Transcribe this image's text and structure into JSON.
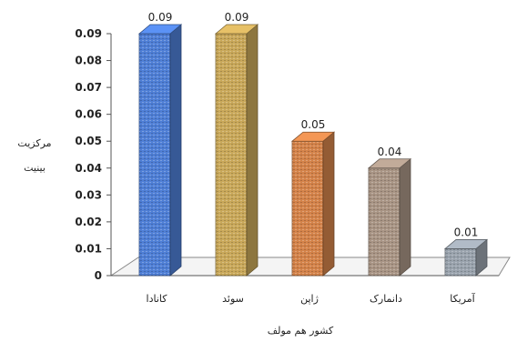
{
  "chart_data": {
    "type": "bar",
    "categories": [
      "کانادا",
      "سوئد",
      "ژاپن",
      "دانمارک",
      "آمریکا"
    ],
    "values": [
      0.09,
      0.09,
      0.05,
      0.04,
      0.01
    ],
    "data_labels": [
      "0.09",
      "0.09",
      "0.05",
      "0.04",
      "0.01"
    ],
    "colors": [
      "#4f7fd6",
      "#c9a85a",
      "#d4834a",
      "#a99585",
      "#9aa3ad"
    ],
    "title": "",
    "xlabel": "کشور هم مولف",
    "ylabel": "مرکزیت بینیت",
    "ylabel_lines": [
      "مرکزیت",
      "بینیت"
    ],
    "ylim": [
      0,
      0.09
    ],
    "yticks": [
      "0",
      "0.01",
      "0.02",
      "0.03",
      "0.04",
      "0.05",
      "0.06",
      "0.07",
      "0.08",
      "0.09"
    ],
    "grid": false,
    "style": "3d-bar"
  }
}
